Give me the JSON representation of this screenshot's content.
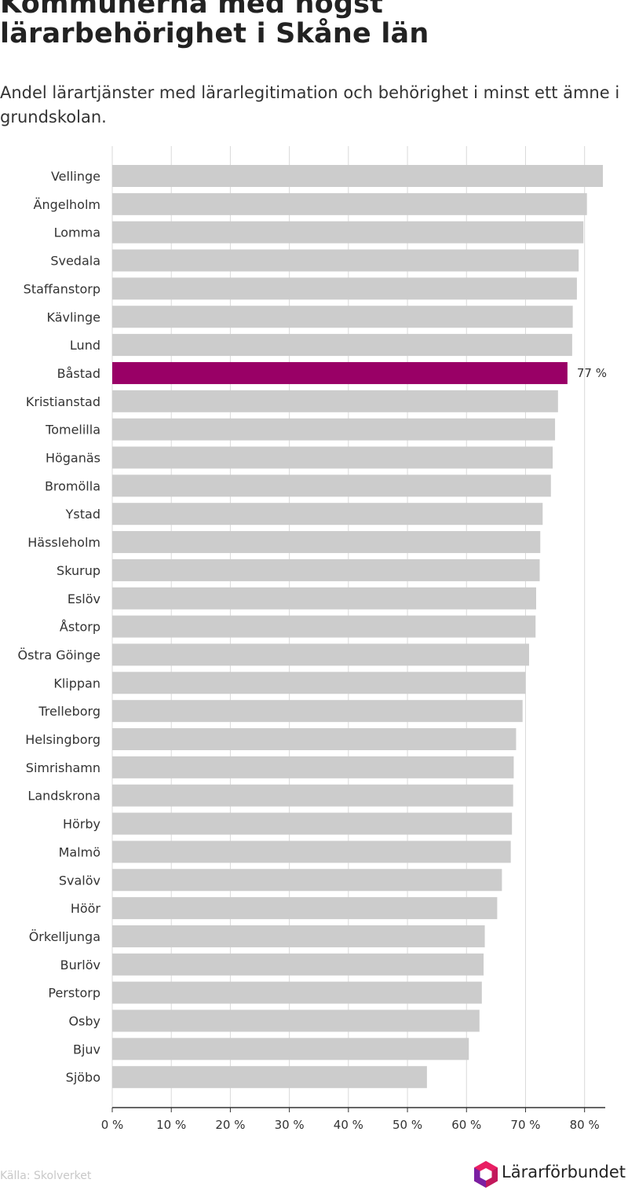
{
  "header": {
    "title": "Kommunerna med högst lärarbehörighet i Skåne län",
    "subtitle": "Andel lärartjänster med lärarlegitimation och behörighet i minst ett ämne i grundskolan."
  },
  "footer": {
    "source": "Källa: Skolverket",
    "logo_text": "Lärarförbundet"
  },
  "colors": {
    "bar": "#cccccc",
    "highlight": "#990066",
    "grid": "#d9d9d9",
    "axis": "#333333",
    "logo_pink": "#c2185b",
    "logo_purple": "#7b1fa2"
  },
  "chart_data": {
    "type": "bar",
    "orientation": "horizontal",
    "categories": [
      "Vellinge",
      "Ängelholm",
      "Lomma",
      "Svedala",
      "Staffanstorp",
      "Kävlinge",
      "Lund",
      "Båstad",
      "Kristianstad",
      "Tomelilla",
      "Höganäs",
      "Bromölla",
      "Ystad",
      "Hässleholm",
      "Skurup",
      "Eslöv",
      "Åstorp",
      "Östra Göinge",
      "Klippan",
      "Trelleborg",
      "Helsingborg",
      "Simrishamn",
      "Landskrona",
      "Hörby",
      "Malmö",
      "Svalöv",
      "Höör",
      "Örkelljunga",
      "Burlöv",
      "Perstorp",
      "Osby",
      "Bjuv",
      "Sjöbo"
    ],
    "values": [
      83.1,
      80.4,
      79.8,
      79.0,
      78.7,
      78.0,
      77.9,
      77.1,
      75.5,
      75.0,
      74.6,
      74.3,
      72.9,
      72.5,
      72.4,
      71.8,
      71.7,
      70.6,
      70.0,
      69.5,
      68.4,
      68.0,
      67.9,
      67.7,
      67.5,
      66.0,
      65.2,
      63.1,
      62.9,
      62.6,
      62.2,
      60.4,
      53.3
    ],
    "highlight": "Båstad",
    "highlight_label": "77 %",
    "xlim": [
      0,
      83.5
    ],
    "xticks": [
      0,
      10,
      20,
      30,
      40,
      50,
      60,
      70,
      80
    ],
    "xtick_labels": [
      "0 %",
      "10 %",
      "20 %",
      "30 %",
      "40 %",
      "50 %",
      "60 %",
      "70 %",
      "80 %"
    ],
    "grid": true
  }
}
